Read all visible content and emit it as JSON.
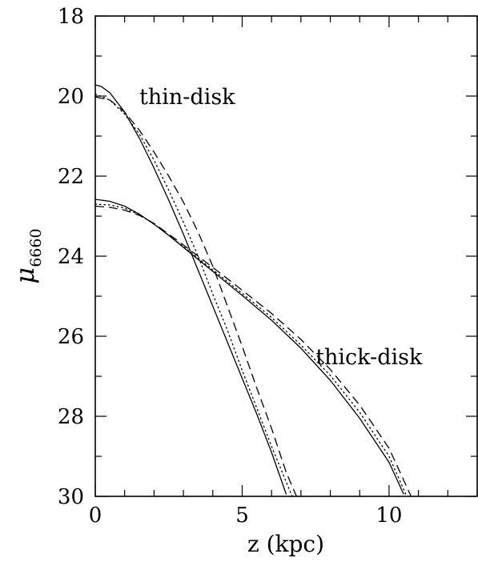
{
  "chart_data": {
    "type": "line",
    "xlabel": "z (kpc)",
    "ylabel": "μ",
    "ylabel_sub": "6660",
    "xlim": [
      0,
      13
    ],
    "ylim": [
      30,
      18
    ],
    "y_inverted": true,
    "x_major_ticks": [
      0,
      5,
      10
    ],
    "x_minor_step": 1,
    "y_major_ticks": [
      18,
      20,
      22,
      24,
      26,
      28,
      30
    ],
    "y_minor_step": 1,
    "grid": false,
    "annotations": [
      {
        "text": "thin-disk",
        "x": 1.5,
        "y": 20.0
      },
      {
        "text": "thick-disk",
        "x": 7.5,
        "y": 26.5
      }
    ],
    "series": [
      {
        "group": "thin",
        "style": "solid",
        "x": [
          0,
          0.2,
          0.5,
          1.0,
          1.5,
          2.0,
          2.5,
          3.0,
          3.5,
          4.0,
          4.5,
          5.0,
          5.5,
          6.0,
          6.5
        ],
        "y": [
          19.72,
          19.76,
          19.92,
          20.4,
          21.05,
          21.8,
          22.6,
          23.45,
          24.35,
          25.25,
          26.15,
          27.05,
          27.95,
          28.9,
          29.95
        ]
      },
      {
        "group": "thin",
        "style": "dotted",
        "x": [
          0,
          0.5,
          1.0,
          1.5,
          2.0,
          2.5,
          3.0,
          3.5,
          4.0,
          4.5,
          5.0,
          5.5,
          6.0,
          6.7
        ],
        "y": [
          19.95,
          20.1,
          20.45,
          20.95,
          21.6,
          22.35,
          23.15,
          24.0,
          24.95,
          25.85,
          26.85,
          27.8,
          28.75,
          30.0
        ]
      },
      {
        "group": "thin",
        "style": "dashed",
        "x": [
          0,
          0.5,
          1.0,
          1.5,
          2.0,
          2.5,
          3.0,
          3.5,
          4.0,
          4.5,
          5.0,
          5.5,
          6.0,
          6.5,
          6.85
        ],
        "y": [
          20.02,
          20.1,
          20.4,
          20.85,
          21.4,
          22.0,
          22.65,
          23.4,
          24.25,
          25.25,
          26.25,
          27.3,
          28.3,
          29.4,
          30.0
        ]
      },
      {
        "group": "thick",
        "style": "solid",
        "x": [
          0,
          0.5,
          1.0,
          1.5,
          2.0,
          2.5,
          3.0,
          3.5,
          4.0,
          5.0,
          6.0,
          7.0,
          8.0,
          9.0,
          10.0,
          10.5
        ],
        "y": [
          22.58,
          22.63,
          22.75,
          22.95,
          23.2,
          23.48,
          23.78,
          24.08,
          24.38,
          24.98,
          25.6,
          26.3,
          27.1,
          28.05,
          29.15,
          29.95
        ]
      },
      {
        "group": "thick",
        "style": "dotted",
        "x": [
          0,
          0.5,
          1.0,
          1.5,
          2.0,
          2.5,
          3.0,
          3.5,
          4.0,
          5.0,
          6.0,
          7.0,
          8.0,
          9.0,
          10.0,
          10.6
        ],
        "y": [
          22.7,
          22.72,
          22.8,
          22.97,
          23.2,
          23.48,
          23.76,
          24.05,
          24.34,
          24.93,
          25.53,
          26.22,
          26.98,
          27.9,
          29.0,
          30.0
        ]
      },
      {
        "group": "thick",
        "style": "dashed",
        "x": [
          0,
          0.5,
          1.0,
          1.5,
          2.0,
          2.5,
          3.0,
          3.5,
          4.0,
          5.0,
          6.0,
          7.0,
          8.0,
          9.0,
          10.0,
          10.75
        ],
        "y": [
          22.75,
          22.78,
          22.85,
          22.98,
          23.18,
          23.45,
          23.72,
          24.0,
          24.28,
          24.85,
          25.43,
          26.08,
          26.83,
          27.72,
          28.8,
          30.0
        ]
      }
    ]
  }
}
